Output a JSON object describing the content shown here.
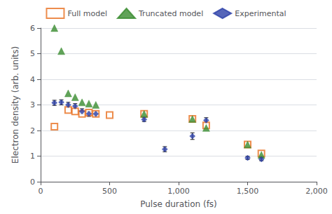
{
  "chart_data": {
    "type": "scatter",
    "xlabel": "Pulse duration (fs)",
    "ylabel": "Electron density (arb. units)",
    "xlim": [
      0,
      2000
    ],
    "ylim": [
      0,
      6
    ],
    "xticks": [
      0,
      500,
      1000,
      1500,
      2000
    ],
    "yticks": [
      0,
      1,
      2,
      3,
      4,
      5,
      6
    ],
    "grid": true,
    "legend": "top",
    "series": [
      {
        "name": "Full model",
        "color": "#e87020",
        "marker": "open_square",
        "x": [
          100,
          200,
          250,
          300,
          350,
          400,
          500,
          750,
          1100,
          1200,
          1500,
          1600
        ],
        "values": [
          2.15,
          2.8,
          2.75,
          2.65,
          2.7,
          2.65,
          2.6,
          2.65,
          2.45,
          2.2,
          1.45,
          1.1
        ]
      },
      {
        "name": "Truncated model",
        "color": "#3a8c2f",
        "marker": "triangle",
        "x": [
          100,
          150,
          200,
          250,
          300,
          350,
          400,
          750,
          1100,
          1200,
          1500,
          1600
        ],
        "values": [
          6.0,
          5.1,
          3.45,
          3.3,
          3.1,
          3.05,
          3.0,
          2.65,
          2.45,
          2.1,
          1.45,
          1.05
        ]
      },
      {
        "name": "Experimental",
        "color": "#2b3fa8",
        "marker": "diamond",
        "x": [
          100,
          150,
          200,
          250,
          300,
          350,
          400,
          750,
          900,
          1100,
          1200,
          1500,
          1600
        ],
        "values": [
          3.08,
          3.1,
          3.0,
          2.95,
          2.75,
          2.65,
          2.65,
          2.43,
          1.27,
          1.78,
          2.4,
          0.93,
          0.88
        ],
        "yerr": [
          0.1,
          0.1,
          0.1,
          0.1,
          0.1,
          0.1,
          0.1,
          0.08,
          0.1,
          0.13,
          0.1,
          0.06,
          0.06
        ]
      }
    ]
  }
}
